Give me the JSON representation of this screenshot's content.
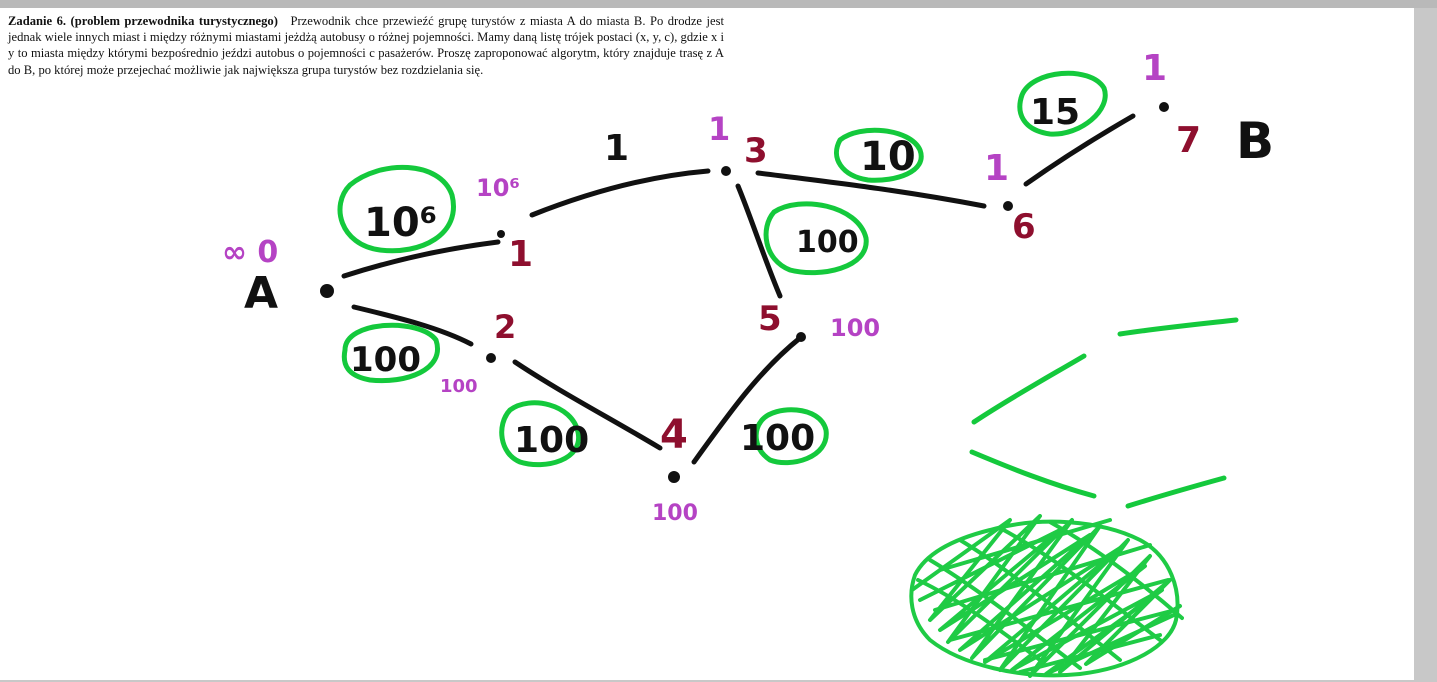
{
  "document": {
    "heading": "Zadanie 6. (problem przewodnika turystycznego)",
    "body": "Przewodnik chce przewieźć grupę turystów z miasta A do miasta B. Po drodze jest jednak wiele innych miast i między różnymi miastami jeżdżą autobusy o różnej pojemności. Mamy daną listę trójek postaci (x, y, c), gdzie x i y to miasta między którymi bezpośrednio jeździ autobus o pojemności c pasażerów. Proszę zaproponować algorytm, który znajduje trasę z A do B, po której może przejechać możliwie jak największa grupa turystów bez rozdzielania się."
  },
  "colors": {
    "ink_black": "#111111",
    "ink_purple": "#b543c4",
    "ink_darkred": "#8e0f2e",
    "ink_green": "#14c93c",
    "page_bg": "#ffffff",
    "viewer_bg": "#c8c8c8"
  },
  "annotations": {
    "nodes": {
      "start_label": "A",
      "end_label": "B",
      "start_values": "∞ 0",
      "n1_id": "1",
      "n1_value": "10⁶",
      "n2_id": "2",
      "n2_value": "100",
      "n3_id": "3",
      "n3_value": "1",
      "n4_id": "4",
      "n4_value": "100",
      "n5_id": "5",
      "n5_value": "100",
      "n6_id": "6",
      "n6_value": "1",
      "n7_id": "7",
      "n7_value": "1"
    },
    "edges": {
      "a_1": "10⁶",
      "a_2": "100",
      "1_3": "1",
      "2_4": "100",
      "4_5": "100",
      "3_5": "100",
      "3_6": "10",
      "6_7": "15"
    }
  }
}
